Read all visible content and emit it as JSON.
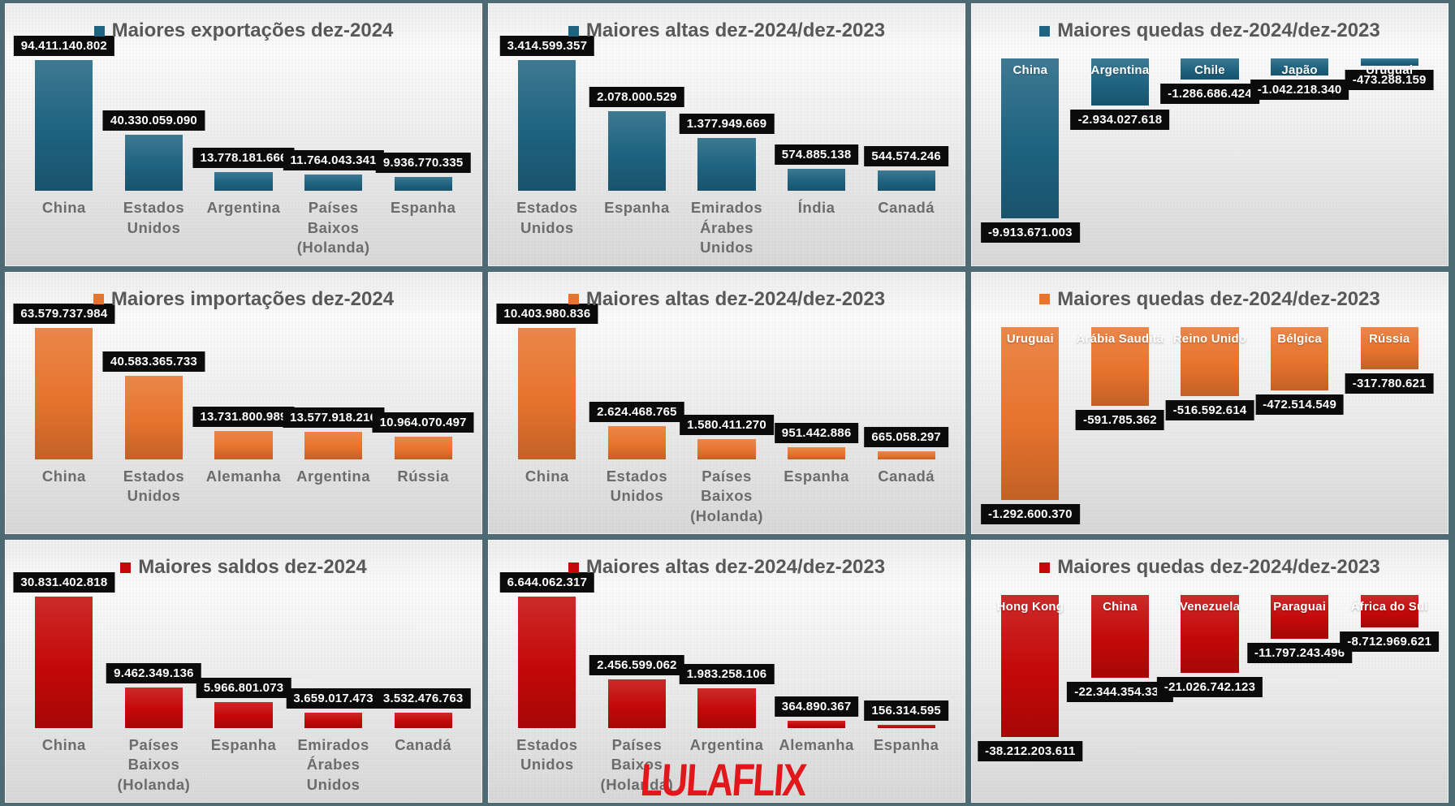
{
  "watermark": {
    "text": "LULAFLIX",
    "color": "#e2171c"
  },
  "palette": {
    "exports_teal": "#1e6380",
    "imports_orange": "#e7732d",
    "balance_red": "#c40808",
    "panel_border": "#4e6a73",
    "title_gray": "#585858",
    "label_box_black": "#0b0b0b"
  },
  "chart_data": [
    {
      "type": "bar",
      "orientation": "columns-up",
      "grid": false,
      "axis_visible": false,
      "legend_position": "top",
      "title": "Maiores exportações dez-2024",
      "series_color": "#1e6380",
      "categories": [
        "China",
        "Estados Unidos",
        "Argentina",
        "Países Baixos (Holanda)",
        "Espanha"
      ],
      "values": [
        94411140802,
        40330059090,
        13778181666,
        11764043341,
        9936770335
      ],
      "value_labels": [
        "94.411.140.802",
        "40.330.059.090",
        "13.778.181.666",
        "11.764.043.341",
        "9.936.770.335"
      ]
    },
    {
      "type": "bar",
      "orientation": "columns-up",
      "grid": false,
      "axis_visible": false,
      "legend_position": "top",
      "title": "Maiores altas dez-2024/dez-2023",
      "series_color": "#1e6380",
      "categories": [
        "Estados Unidos",
        "Espanha",
        "Emirados Árabes Unidos",
        "Índia",
        "Canadá"
      ],
      "values": [
        3414599357,
        2078000529,
        1377949669,
        574885138,
        544574246
      ],
      "value_labels": [
        "3.414.599.357",
        "2.078.000.529",
        "1.377.949.669",
        "574.885.138",
        "544.574.246"
      ]
    },
    {
      "type": "bar",
      "orientation": "columns-down",
      "grid": false,
      "axis_visible": false,
      "legend_position": "top",
      "title": "Maiores quedas dez-2024/dez-2023",
      "series_color": "#1e6380",
      "categories": [
        "China",
        "Argentina",
        "Chile",
        "Japão",
        "Uruguai"
      ],
      "values": [
        -9913671003,
        -2934027618,
        -1286686424,
        -1042218340,
        -473288159
      ],
      "value_labels": [
        "-9.913.671.003",
        "-2.934.027.618",
        "-1.286.686.424",
        "-1.042.218.340",
        "-473.288.159"
      ]
    },
    {
      "type": "bar",
      "orientation": "columns-up",
      "grid": false,
      "axis_visible": false,
      "legend_position": "top",
      "title": "Maiores importações dez-2024",
      "series_color": "#e7732d",
      "categories": [
        "China",
        "Estados Unidos",
        "Alemanha",
        "Argentina",
        "Rússia"
      ],
      "values": [
        63579737984,
        40583365733,
        13731800989,
        13577918216,
        10964070497
      ],
      "value_labels": [
        "63.579.737.984",
        "40.583.365.733",
        "13.731.800.989",
        "13.577.918.216",
        "10.964.070.497"
      ]
    },
    {
      "type": "bar",
      "orientation": "columns-up",
      "grid": false,
      "axis_visible": false,
      "legend_position": "top",
      "title": "Maiores altas dez-2024/dez-2023",
      "series_color": "#e7732d",
      "categories": [
        "China",
        "Estados Unidos",
        "Países Baixos (Holanda)",
        "Espanha",
        "Canadá"
      ],
      "values": [
        10403980836,
        2624468765,
        1580411270,
        951442886,
        665058297
      ],
      "value_labels": [
        "10.403.980.836",
        "2.624.468.765",
        "1.580.411.270",
        "951.442.886",
        "665.058.297"
      ]
    },
    {
      "type": "bar",
      "orientation": "columns-down",
      "grid": false,
      "axis_visible": false,
      "legend_position": "top",
      "title": "Maiores quedas dez-2024/dez-2023",
      "series_color": "#e7732d",
      "categories": [
        "Uruguai",
        "Arábia Saudita",
        "Reino Unido",
        "Bélgica",
        "Rússia"
      ],
      "values": [
        -1292600370,
        -591785362,
        -516592614,
        -472514549,
        -317780621
      ],
      "value_labels": [
        "-1.292.600.370",
        "-591.785.362",
        "-516.592.614",
        "-472.514.549",
        "-317.780.621"
      ]
    },
    {
      "type": "bar",
      "orientation": "columns-up",
      "grid": false,
      "axis_visible": false,
      "legend_position": "top",
      "title": "Maiores saldos dez-2024",
      "series_color": "#c40808",
      "categories": [
        "China",
        "Países Baixos (Holanda)",
        "Espanha",
        "Emirados Árabes Unidos",
        "Canadá"
      ],
      "values": [
        30831402818,
        9462349136,
        5966801073,
        3659017473,
        3532476763
      ],
      "value_labels": [
        "30.831.402.818",
        "9.462.349.136",
        "5.966.801.073",
        "3.659.017.473",
        "3.532.476.763"
      ]
    },
    {
      "type": "bar",
      "orientation": "columns-up",
      "grid": false,
      "axis_visible": false,
      "legend_position": "top",
      "title": "Maiores altas dez-2024/dez-2023",
      "series_color": "#c40808",
      "categories": [
        "Estados Unidos",
        "Países Baixos (Holanda)",
        "Argentina",
        "Alemanha",
        "Espanha"
      ],
      "values": [
        6644062317,
        2456599062,
        1983258106,
        364890367,
        156314595
      ],
      "value_labels": [
        "6.644.062.317",
        "2.456.599.062",
        "1.983.258.106",
        "364.890.367",
        "156.314.595"
      ]
    },
    {
      "type": "bar",
      "orientation": "columns-down",
      "grid": false,
      "axis_visible": false,
      "legend_position": "top",
      "title": "Maiores quedas dez-2024/dez-2023",
      "series_color": "#c40808",
      "categories": [
        "Hong Kong",
        "China",
        "Venezuela",
        "Paraguai",
        "África do Sul"
      ],
      "values": [
        -38212203611,
        -22344354330,
        -21026742123,
        -11797243496,
        -8712969621
      ],
      "value_labels": [
        "-38.212.203.611",
        "-22.344.354.330",
        "-21.026.742.123",
        "-11.797.243.496",
        "-8.712.969.621"
      ]
    }
  ]
}
